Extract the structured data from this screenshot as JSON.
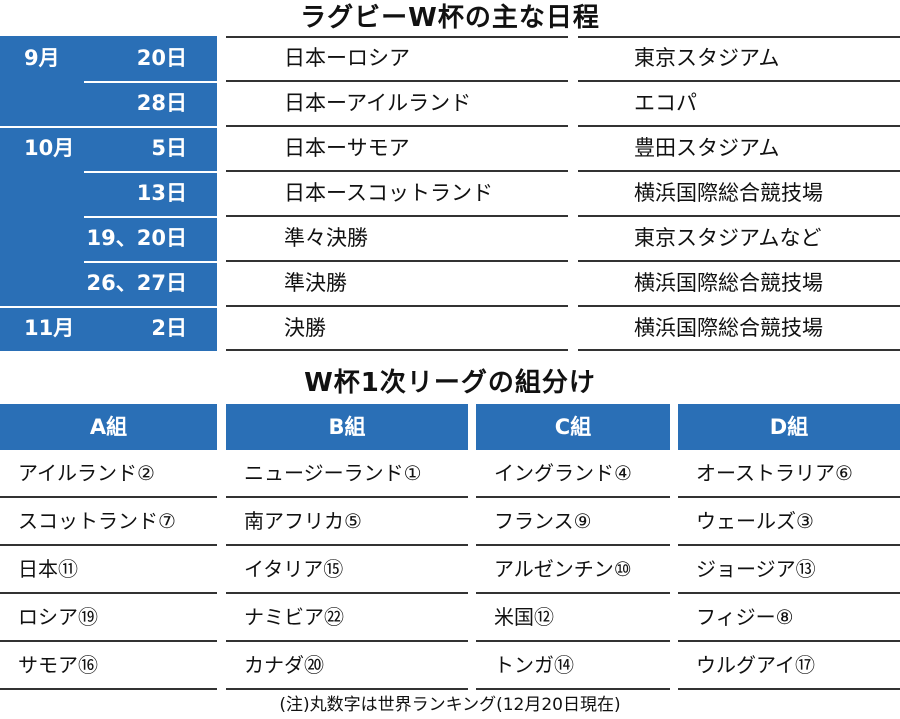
{
  "title_schedule": "ラグビーW杯の主な日程",
  "schedule": [
    {
      "month": "9月",
      "day": "20日",
      "match": "日本ーロシア",
      "venue": "東京スタジアム"
    },
    {
      "month": "",
      "day": "28日",
      "match": "日本ーアイルランド",
      "venue": "エコパ"
    },
    {
      "month": "10月",
      "day": "5日",
      "match": "日本ーサモア",
      "venue": "豊田スタジアム"
    },
    {
      "month": "",
      "day": "13日",
      "match": "日本ースコットランド",
      "venue": "横浜国際総合競技場"
    },
    {
      "month": "",
      "day": "19、20日",
      "match": "準々決勝",
      "venue": "東京スタジアムなど"
    },
    {
      "month": "",
      "day": "26、27日",
      "match": "準決勝",
      "venue": "横浜国際総合競技場"
    },
    {
      "month": "11月",
      "day": "2日",
      "match": "決勝",
      "venue": "横浜国際総合競技場"
    }
  ],
  "title_groups": "W杯1次リーグの組分け",
  "groups": [
    {
      "name": "A組",
      "teams": [
        "アイルランド②",
        "スコットランド⑦",
        "日本⑪",
        "ロシア⑲",
        "サモア⑯"
      ]
    },
    {
      "name": "B組",
      "teams": [
        "ニュージーランド①",
        "南アフリカ⑤",
        "イタリア⑮",
        "ナミビア㉒",
        "カナダ⑳"
      ]
    },
    {
      "name": "C組",
      "teams": [
        "イングランド④",
        "フランス⑨",
        "アルゼンチン⑩",
        "米国⑫",
        "トンガ⑭"
      ]
    },
    {
      "name": "D組",
      "teams": [
        "オーストラリア⑥",
        "ウェールズ③",
        "ジョージア⑬",
        "フィジー⑧",
        "ウルグアイ⑰"
      ]
    }
  ],
  "note": "(注)丸数字は世界ランキング(12月20日現在)",
  "colors": {
    "header_blue": "#2a6fb6",
    "rule": "#333333"
  }
}
